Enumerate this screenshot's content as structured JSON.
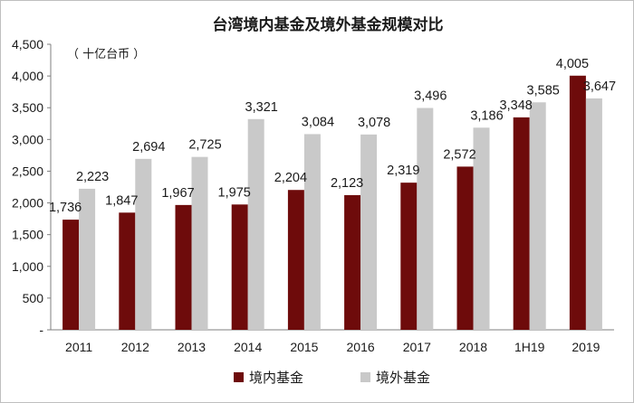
{
  "chart_data": {
    "type": "bar",
    "title": "台湾境内基金及境外基金规模对比",
    "unit_label": "（ 十亿台币 ）",
    "categories": [
      "2011",
      "2012",
      "2013",
      "2014",
      "2015",
      "2016",
      "2017",
      "2018",
      "1H19",
      "2019"
    ],
    "series": [
      {
        "name": "境内基金",
        "color": "#6e0b0b",
        "values": [
          1736,
          1847,
          1967,
          1975,
          2204,
          2123,
          2319,
          2572,
          3348,
          4005
        ],
        "labels": [
          "1,736",
          "1,847",
          "1,967",
          "1,975",
          "2,204",
          "2,123",
          "2,319",
          "2,572",
          "3,348",
          "4,005"
        ]
      },
      {
        "name": "境外基金",
        "color": "#c9c9c9",
        "values": [
          2223,
          2694,
          2725,
          3321,
          3084,
          3078,
          3496,
          3186,
          3585,
          3647
        ],
        "labels": [
          "2,223",
          "2,694",
          "2,725",
          "3,321",
          "3,084",
          "3,078",
          "3,496",
          "3,186",
          "3,585",
          "3,647"
        ]
      }
    ],
    "ylim": [
      0,
      4500
    ],
    "yticks": [
      0,
      500,
      1000,
      1500,
      2000,
      2500,
      3000,
      3500,
      4000,
      4500
    ],
    "ytick_labels": [
      "-",
      "500",
      "1,000",
      "1,500",
      "2,000",
      "2,500",
      "3,000",
      "3,500",
      "4,000",
      "4,500"
    ],
    "grid": false,
    "legend": "bottom"
  }
}
